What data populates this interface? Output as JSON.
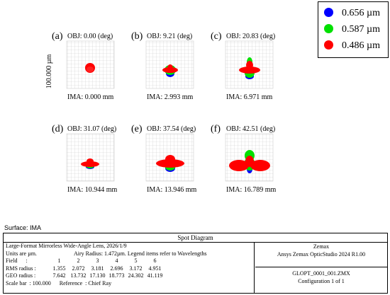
{
  "panels": [
    {
      "letter": "(a)",
      "obj": "OBJ: 0.00 (deg)",
      "ima": "IMA: 0.000 mm"
    },
    {
      "letter": "(b)",
      "obj": "OBJ: 9.21 (deg)",
      "ima": "IMA: 2.993 mm"
    },
    {
      "letter": "(c)",
      "obj": "OBJ: 20.83 (deg)",
      "ima": "IMA: 6.971 mm"
    },
    {
      "letter": "(d)",
      "obj": "OBJ: 31.07 (deg)",
      "ima": "IMA: 10.944 mm"
    },
    {
      "letter": "(e)",
      "obj": "OBJ: 37.54 (deg)",
      "ima": "IMA: 13.946 mm"
    },
    {
      "letter": "(f)",
      "obj": "OBJ: 42.51 (deg)",
      "ima": "IMA: 16.789 mm"
    }
  ],
  "scale_label": "100.000 µm",
  "legend": [
    {
      "label": "0.656 µm",
      "color": "#0000ff"
    },
    {
      "label": "0.587 µm",
      "color": "#00e000"
    },
    {
      "label": "0.486 µm",
      "color": "#ff0000"
    }
  ],
  "surface": "Surface: IMA",
  "footer": {
    "title": "Spot Diagram",
    "line1": "Large-Format Mirrorless Wide-Angle Lens, 2026/1/9",
    "line2a": "Units are µm.",
    "line2b": "Airy Radius: 1.472µm. Legend items refer to Wavelengths",
    "field_label": "Field      :",
    "field_values": [
      "1",
      "2",
      "3",
      "4",
      "5",
      "6"
    ],
    "rms_label": "RMS radius :",
    "rms_values": [
      "1.355",
      "2.072",
      "3.181",
      "2.696",
      "3.172",
      "4.951"
    ],
    "geo_label": "GEO radius :",
    "geo_values": [
      "7.642",
      "13.732",
      "17.130",
      "18.773",
      "24.302",
      "41.119"
    ],
    "scale_bar": "Scale bar  : 100.000",
    "reference": "Reference  : Chief Ray",
    "company": "Zemax",
    "product": "Ansys Zemax OpticStudio 2024 R1.00",
    "file": "GLOPT_0001_001.ZMX",
    "config": "Configuration 1 of 1"
  }
}
